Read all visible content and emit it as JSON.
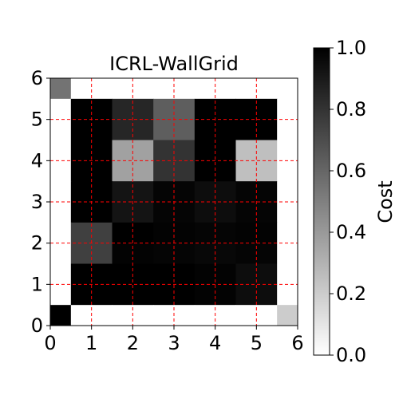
{
  "chart_data": {
    "type": "heatmap",
    "title": "ICRL-WallGrid",
    "xlabel": "",
    "ylabel": "",
    "xlim": [
      0,
      6
    ],
    "ylim": [
      0,
      6
    ],
    "xticks": [
      "0",
      "1",
      "2",
      "3",
      "4",
      "5",
      "6"
    ],
    "yticks": [
      "0",
      "1",
      "2",
      "3",
      "4",
      "5",
      "6"
    ],
    "cell_size": 0.5,
    "grid": true,
    "grid_color": "#ff0000",
    "grid_style": "dashed",
    "colormap": "gray_r",
    "rows_top_to_bottom": [
      [
        0.55,
        0.0,
        0.0,
        0.0,
        0.0,
        0.0,
        0.0,
        0.0,
        0.0,
        0.0,
        0.0,
        0.0
      ],
      [
        0.0,
        1.0,
        1.0,
        0.85,
        0.85,
        0.63,
        0.63,
        1.0,
        1.0,
        1.0,
        1.0,
        0.0
      ],
      [
        0.0,
        1.0,
        1.0,
        0.85,
        0.85,
        0.63,
        0.63,
        1.0,
        1.0,
        1.0,
        1.0,
        0.0
      ],
      [
        0.0,
        1.0,
        1.0,
        0.37,
        0.37,
        0.8,
        0.8,
        1.0,
        1.0,
        0.25,
        0.25,
        0.0
      ],
      [
        0.0,
        1.0,
        1.0,
        0.37,
        0.37,
        0.8,
        0.8,
        1.0,
        1.0,
        0.25,
        0.25,
        0.0
      ],
      [
        0.0,
        1.0,
        1.0,
        0.92,
        0.92,
        0.98,
        0.98,
        0.95,
        0.95,
        0.98,
        0.98,
        0.0
      ],
      [
        0.0,
        1.0,
        1.0,
        0.92,
        0.92,
        0.98,
        0.98,
        0.95,
        0.95,
        0.98,
        0.98,
        0.0
      ],
      [
        0.0,
        0.75,
        0.75,
        1.0,
        1.0,
        0.99,
        0.99,
        0.98,
        0.98,
        0.99,
        0.99,
        0.0
      ],
      [
        0.0,
        0.75,
        0.75,
        0.99,
        0.99,
        0.98,
        0.98,
        0.97,
        0.97,
        0.98,
        0.98,
        0.0
      ],
      [
        0.0,
        1.0,
        1.0,
        1.0,
        1.0,
        1.0,
        1.0,
        0.99,
        0.99,
        0.95,
        0.95,
        0.0
      ],
      [
        0.0,
        1.0,
        1.0,
        1.0,
        1.0,
        1.0,
        1.0,
        0.99,
        0.99,
        0.95,
        0.95,
        0.0
      ],
      [
        1.0,
        0.0,
        0.0,
        0.0,
        0.0,
        0.0,
        0.0,
        0.0,
        0.0,
        0.0,
        0.0,
        0.2
      ]
    ],
    "colorbar": {
      "label": "Cost",
      "range": [
        0,
        1
      ],
      "ticks": [
        "0.0",
        "0.2",
        "0.4",
        "0.6",
        "0.8",
        "1.0"
      ]
    }
  }
}
